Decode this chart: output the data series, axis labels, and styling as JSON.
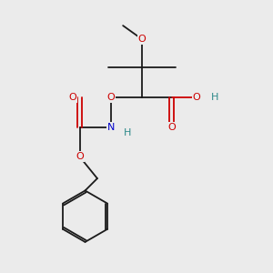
{
  "background_color": "#ebebeb",
  "bond_color": "#1a1a1a",
  "bond_lw": 1.3,
  "atom_colors": {
    "O": "#cc0000",
    "N": "#0000cc",
    "H_acid": "#2e8b8b",
    "C": "#1a1a1a"
  },
  "font_size": 7.5,
  "fig_size": [
    3.0,
    3.0
  ],
  "dpi": 100,
  "xlim": [
    0,
    10
  ],
  "ylim": [
    0,
    10
  ]
}
